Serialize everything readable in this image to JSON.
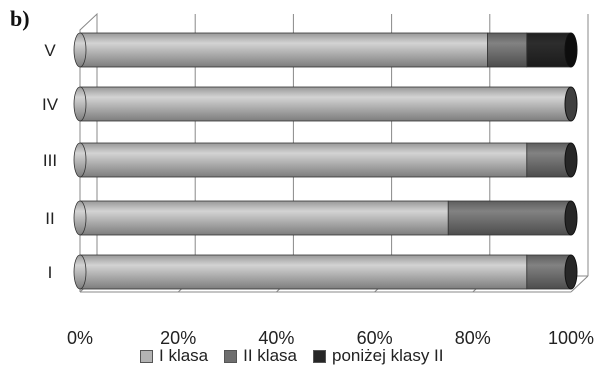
{
  "chart_data": {
    "type": "bar",
    "orientation": "horizontal",
    "stacked": "percent",
    "style": "3d-cylinder",
    "panel_label": "b)",
    "categories": [
      "I",
      "II",
      "III",
      "IV",
      "V"
    ],
    "series": [
      {
        "name": "I klasa",
        "color": "#b3b3b3",
        "values": [
          91,
          75,
          91,
          100,
          83
        ]
      },
      {
        "name": "II klasa",
        "color": "#6e6e6e",
        "values": [
          9,
          25,
          9,
          0,
          8
        ]
      },
      {
        "name": "poniżej klasy II",
        "color": "#262626",
        "values": [
          0,
          0,
          0,
          0,
          9
        ]
      }
    ],
    "xaxis": {
      "ticks": [
        "0%",
        "20%",
        "40%",
        "60%",
        "80%",
        "100%"
      ],
      "range": [
        0,
        100
      ]
    },
    "grid": true,
    "legend_position": "bottom"
  }
}
